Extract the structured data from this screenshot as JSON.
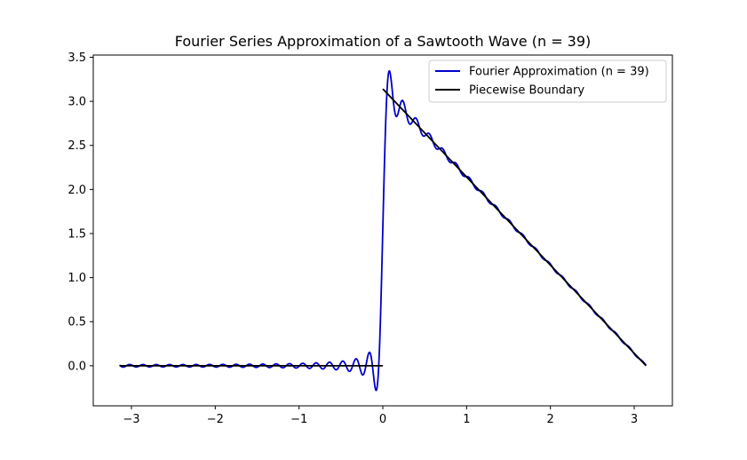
{
  "chart_data": {
    "type": "line",
    "title": "Fourier Series Approximation of a Sawtooth Wave (n = 39)",
    "xlabel": "",
    "ylabel": "",
    "xlim": [
      -3.4558,
      3.4558
    ],
    "ylim": [
      -0.4548,
      3.5252
    ],
    "xticks": [
      -3,
      -2,
      -1,
      0,
      1,
      2,
      3
    ],
    "xtick_labels": [
      "−3",
      "−2",
      "−1",
      "0",
      "1",
      "2",
      "3"
    ],
    "yticks": [
      0.0,
      0.5,
      1.0,
      1.5,
      2.0,
      2.5,
      3.0,
      3.5
    ],
    "ytick_labels": [
      "0.0",
      "0.5",
      "1.0",
      "1.5",
      "2.0",
      "2.5",
      "3.0",
      "3.5"
    ],
    "grid": false,
    "legend_position": "top-right",
    "series": [
      {
        "name": "Fourier Approximation (n = 39)",
        "color": "#0000cd",
        "kind": "fourier",
        "harmonics": 39,
        "x_range": [
          -3.14159,
          3.14159
        ],
        "samples": 2000,
        "description_values": {
          "peak_overshoot": 3.34,
          "min_undershoot": -0.27
        }
      },
      {
        "name": "Piecewise Boundary",
        "color": "#000000",
        "kind": "piecewise",
        "segments": [
          {
            "x": [
              -3.14159,
              0.0
            ],
            "y": [
              0.0,
              0.0
            ]
          },
          {
            "x": [
              0.0,
              3.14159
            ],
            "y": [
              3.14159,
              0.0
            ]
          }
        ]
      }
    ]
  }
}
